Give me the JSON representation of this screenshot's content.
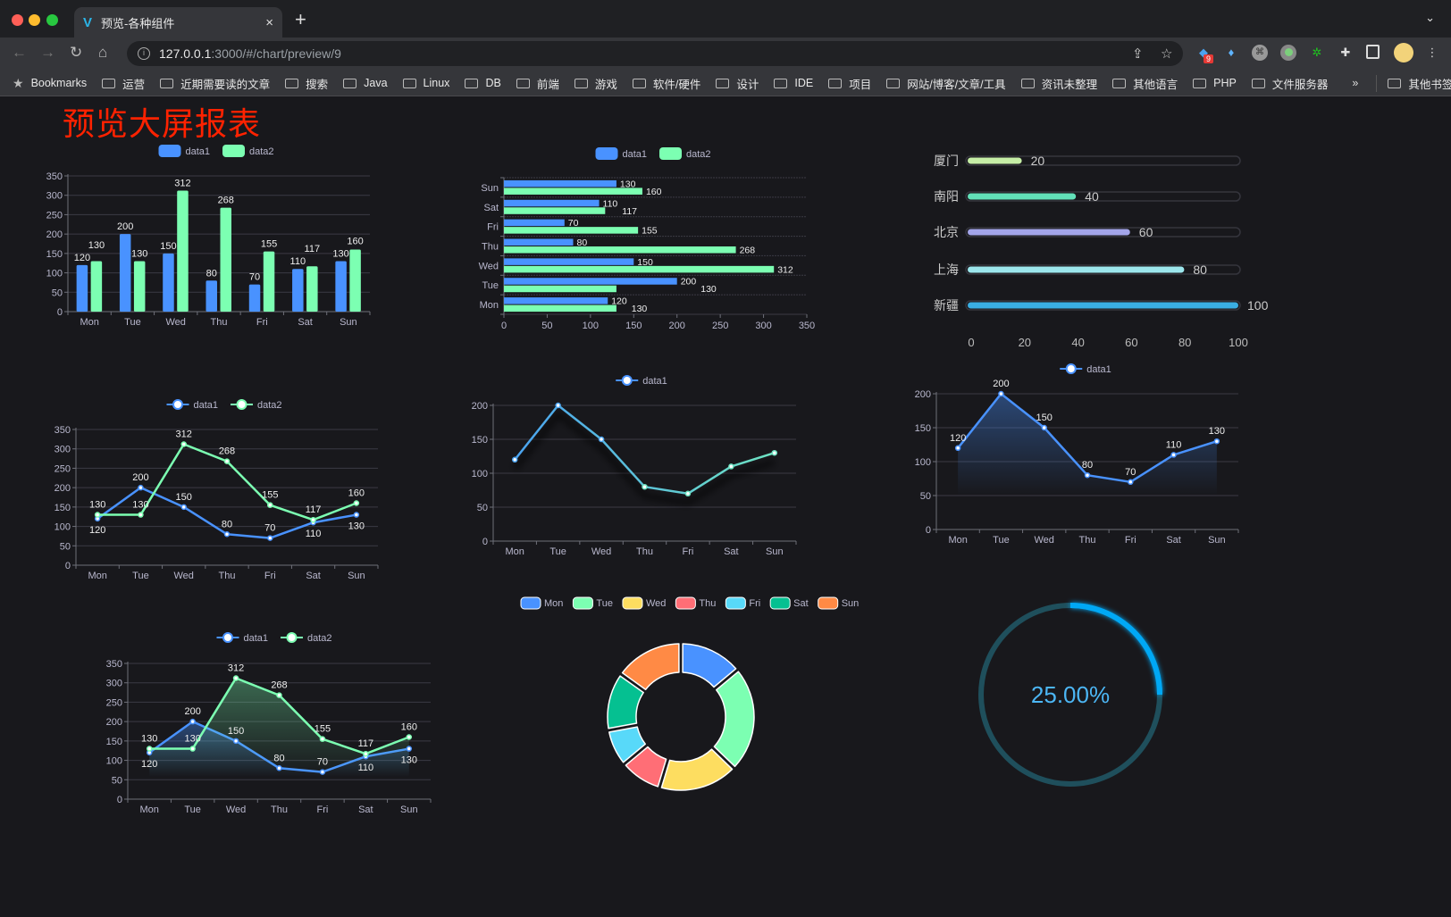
{
  "browser": {
    "tab_title": "预览-各种组件",
    "tab_close": "×",
    "new_tab": "+",
    "tab_menu": "⌄",
    "url_host": "127.0.0.1",
    "url_path": ":3000/#/chart/preview/9",
    "extension_badge": "9",
    "bookmarks_label": "Bookmarks",
    "bookmarks": [
      "运营",
      "近期需要读的文章",
      "搜索",
      "Java",
      "Linux",
      "DB",
      "前端",
      "游戏",
      "软件/硬件",
      "设计",
      "IDE",
      "项目",
      "网站/博客/文章/工具",
      "资讯未整理",
      "其他语言",
      "PHP",
      "文件服务器"
    ],
    "more": "»",
    "other_bookmarks": "其他书签"
  },
  "page": {
    "title": "预览大屏报表"
  },
  "colors": {
    "data1": "#4992ff",
    "data2": "#7cffb2",
    "axis": "#b9b8ce",
    "grid": "#3b3a44",
    "title": "#ff2200"
  },
  "chart_data": [
    {
      "type": "bar",
      "orientation": "vertical",
      "categories": [
        "Mon",
        "Tue",
        "Wed",
        "Thu",
        "Fri",
        "Sat",
        "Sun"
      ],
      "series": [
        {
          "name": "data1",
          "values": [
            120,
            200,
            150,
            80,
            70,
            110,
            130
          ]
        },
        {
          "name": "data2",
          "values": [
            130,
            130,
            312,
            268,
            155,
            117,
            160
          ]
        }
      ],
      "ylim": [
        0,
        350
      ],
      "yticks": [
        0,
        50,
        100,
        150,
        200,
        250,
        300,
        350
      ],
      "legend": "top",
      "data_labels": true
    },
    {
      "type": "bar",
      "orientation": "horizontal",
      "categories": [
        "Mon",
        "Tue",
        "Wed",
        "Thu",
        "Fri",
        "Sat",
        "Sun"
      ],
      "series": [
        {
          "name": "data1",
          "values": [
            120,
            200,
            150,
            80,
            70,
            110,
            130
          ]
        },
        {
          "name": "data2",
          "values": [
            130,
            130,
            312,
            268,
            155,
            117,
            160
          ]
        }
      ],
      "xlim": [
        0,
        350
      ],
      "xticks": [
        0,
        50,
        100,
        150,
        200,
        250,
        300,
        350
      ],
      "legend": "top",
      "data_labels": true
    },
    {
      "type": "bar",
      "orientation": "horizontal-progress",
      "categories": [
        "厦门",
        "南阳",
        "北京",
        "上海",
        "新疆"
      ],
      "values": [
        20,
        40,
        60,
        80,
        100
      ],
      "colors": [
        "#c6eea6",
        "#62e0b8",
        "#a3a5ea",
        "#9ce6ec",
        "#3aaee3"
      ],
      "xlim": [
        0,
        100
      ],
      "xticks": [
        0,
        20,
        40,
        60,
        80,
        100
      ],
      "data_labels": true
    },
    {
      "type": "line",
      "categories": [
        "Mon",
        "Tue",
        "Wed",
        "Thu",
        "Fri",
        "Sat",
        "Sun"
      ],
      "series": [
        {
          "name": "data1",
          "values": [
            120,
            200,
            150,
            80,
            70,
            110,
            130
          ]
        },
        {
          "name": "data2",
          "values": [
            130,
            130,
            312,
            268,
            155,
            117,
            160
          ]
        }
      ],
      "ylim": [
        0,
        350
      ],
      "yticks": [
        0,
        50,
        100,
        150,
        200,
        250,
        300,
        350
      ],
      "legend": "top",
      "data_labels": true
    },
    {
      "type": "line",
      "categories": [
        "Mon",
        "Tue",
        "Wed",
        "Thu",
        "Fri",
        "Sat",
        "Sun"
      ],
      "series": [
        {
          "name": "data1",
          "values": [
            120,
            200,
            150,
            80,
            70,
            110,
            130
          ]
        }
      ],
      "ylim": [
        0,
        200
      ],
      "yticks": [
        0,
        50,
        100,
        150,
        200
      ],
      "legend": "top",
      "data_labels": false,
      "line_gradient": [
        "#4aa3f0",
        "#6ee3c2"
      ]
    },
    {
      "type": "area",
      "categories": [
        "Mon",
        "Tue",
        "Wed",
        "Thu",
        "Fri",
        "Sat",
        "Sun"
      ],
      "series": [
        {
          "name": "data1",
          "values": [
            120,
            200,
            150,
            80,
            70,
            110,
            130
          ]
        }
      ],
      "ylim": [
        0,
        200
      ],
      "yticks": [
        0,
        50,
        100,
        150,
        200
      ],
      "legend": "top",
      "data_labels": true
    },
    {
      "type": "area",
      "categories": [
        "Mon",
        "Tue",
        "Wed",
        "Thu",
        "Fri",
        "Sat",
        "Sun"
      ],
      "series": [
        {
          "name": "data1",
          "values": [
            120,
            200,
            150,
            80,
            70,
            110,
            130
          ]
        },
        {
          "name": "data2",
          "values": [
            130,
            130,
            312,
            268,
            155,
            117,
            160
          ]
        }
      ],
      "ylim": [
        0,
        350
      ],
      "yticks": [
        0,
        50,
        100,
        150,
        200,
        250,
        300,
        350
      ],
      "legend": "top",
      "data_labels": true
    },
    {
      "type": "pie",
      "donut": true,
      "categories": [
        "Mon",
        "Tue",
        "Wed",
        "Thu",
        "Fri",
        "Sat",
        "Sun"
      ],
      "values": [
        120,
        200,
        150,
        80,
        70,
        110,
        130
      ],
      "colors": [
        "#4992ff",
        "#7cffb2",
        "#fddd60",
        "#ff6e76",
        "#58d9f9",
        "#05c091",
        "#ff8a45"
      ],
      "legend": "top"
    },
    {
      "type": "gauge",
      "value": 25,
      "label": "25.00%",
      "colors": {
        "track": "#1f4f5c",
        "progress": "#00a8f5",
        "text": "#4cb6f4"
      }
    }
  ]
}
